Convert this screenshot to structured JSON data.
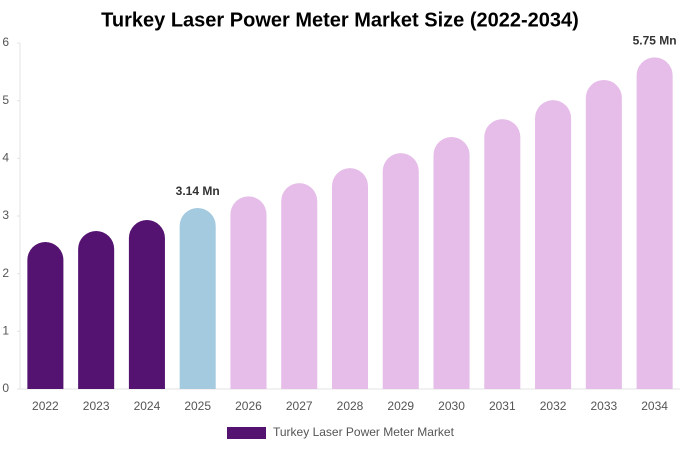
{
  "chart_data": {
    "type": "bar",
    "title": "Turkey Laser Power Meter Market Size (2022-2034)",
    "categories": [
      "2022",
      "2023",
      "2024",
      "2025",
      "2026",
      "2027",
      "2028",
      "2029",
      "2030",
      "2031",
      "2032",
      "2033",
      "2034"
    ],
    "series": [
      {
        "name": "Turkey Laser Power Meter Market",
        "color": "#541370",
        "values": [
          2.55,
          2.74,
          2.93,
          3.14,
          3.34,
          3.57,
          3.83,
          4.09,
          4.37,
          4.68,
          5.01,
          5.36,
          5.75
        ],
        "value_labels": [
          null,
          null,
          null,
          "3.14 Mn",
          null,
          null,
          null,
          null,
          null,
          null,
          null,
          null,
          "5.75 Mn"
        ],
        "colors": [
          "#541370",
          "#541370",
          "#541370",
          "#a4cadf",
          "#e6bde9",
          "#e6bde9",
          "#e6bde9",
          "#e6bde9",
          "#e6bde9",
          "#e6bde9",
          "#e6bde9",
          "#e6bde9",
          "#e6bde9"
        ]
      }
    ],
    "ylim": [
      0,
      6
    ],
    "yticks": [
      0,
      1,
      2,
      3,
      4,
      5,
      6
    ],
    "grid": false
  }
}
